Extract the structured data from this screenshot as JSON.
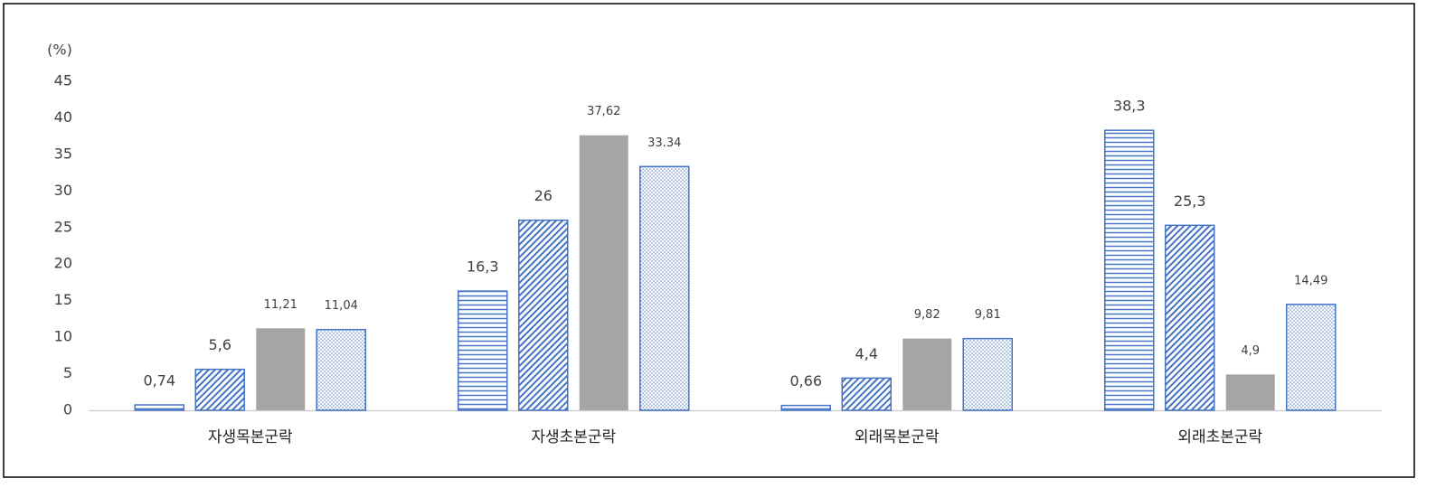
{
  "chart_data": {
    "type": "bar",
    "y_label": "(%)",
    "categories": [
      "자생목본군락",
      "자생초본군락",
      "외래목본군락",
      "외래초본군락"
    ],
    "series": [
      {
        "color": "#4472c4",
        "pattern": "horizontal",
        "values": [
          0.74,
          16.3,
          0.66,
          38.3
        ],
        "value_labels": [
          "0,74",
          "16,3",
          "0,66",
          "38,3"
        ]
      },
      {
        "color": "#4472c4",
        "pattern": "diagonal",
        "values": [
          5.6,
          26,
          4.4,
          25.3
        ],
        "value_labels": [
          "5,6",
          "26",
          "4,4",
          "25,3"
        ]
      },
      {
        "color": "#a5a5a5",
        "pattern": "solid",
        "values": [
          11.21,
          37.62,
          9.82,
          4.9
        ],
        "value_labels": [
          "11,21",
          "37,62",
          "9,82",
          "4,9"
        ]
      },
      {
        "color": "#4472c4",
        "pattern": "dots",
        "values": [
          11.04,
          33.34,
          9.81,
          14.49
        ],
        "value_labels": [
          "11,04",
          "33.34",
          "9,81",
          "14,49"
        ]
      }
    ],
    "ylim": [
      0,
      45
    ],
    "yticks": [
      0,
      5,
      10,
      15,
      20,
      25,
      30,
      35,
      40,
      45
    ],
    "grid": false
  }
}
